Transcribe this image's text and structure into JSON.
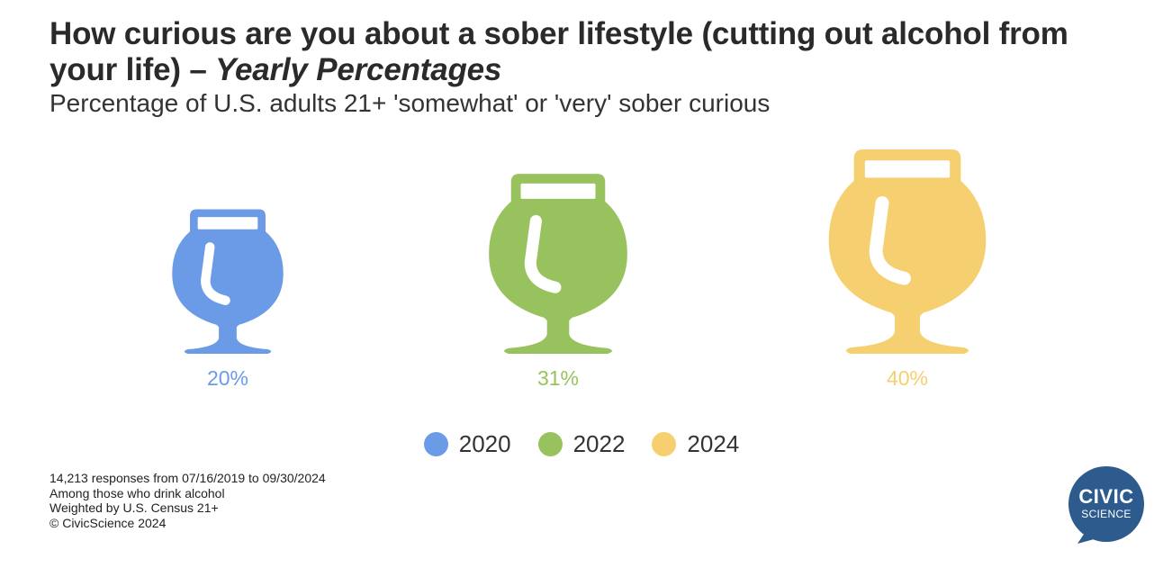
{
  "title_main": "How curious are you about a sober lifestyle (cutting out alcohol from your life) – ",
  "title_italic": "Yearly Percentages",
  "subtitle": "Percentage of U.S. adults 21+ 'somewhat' or 'very' sober curious",
  "chart_data": {
    "type": "bar",
    "title": "How curious are you about a sober lifestyle (cutting out alcohol from your life) – Yearly Percentages",
    "subtitle": "Percentage of U.S. adults 21+ 'somewhat' or 'very' sober curious",
    "categories": [
      "2020",
      "2022",
      "2024"
    ],
    "values": [
      20,
      31,
      40
    ],
    "value_labels": [
      "20%",
      "31%",
      "40%"
    ],
    "colors": [
      "#6b9be6",
      "#98c25e",
      "#f6d070"
    ],
    "unit": "%",
    "legend_position": "bottom",
    "mark": "beer-glass-icon"
  },
  "footnotes": [
    "14,213 responses from 07/16/2019 to 09/30/2024",
    "Among those who drink alcohol",
    "Weighted by U.S. Census 21+",
    "© CivicScience 2024"
  ],
  "logo": {
    "line1": "CIVIC",
    "line2": "SCIENCE",
    "color": "#2d5b8e"
  }
}
